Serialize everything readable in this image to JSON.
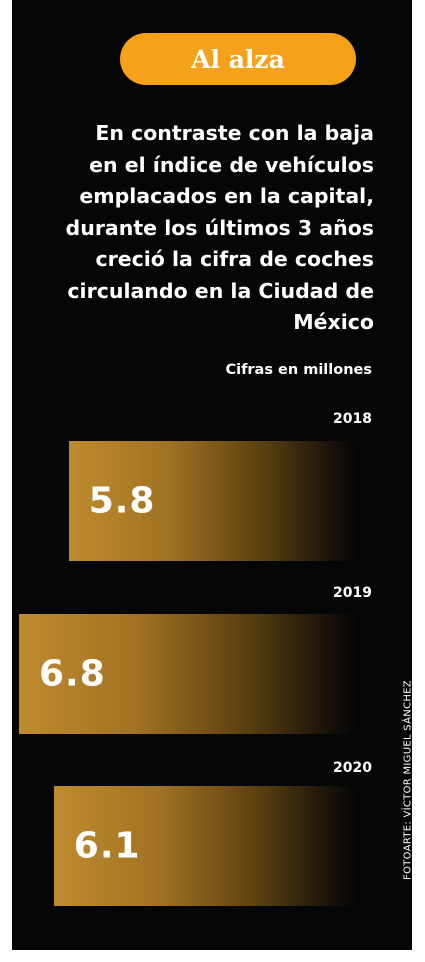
{
  "header": {
    "badge": "Al alza",
    "headline_lines": [
      "En contraste con la baja",
      "en el índice de vehículos",
      "emplacados en la capital,",
      "durante los últimos 3 años",
      "creció la cifra de coches",
      "circulando en la Ciudad de",
      "México"
    ],
    "subtitle": "Cifras en millones"
  },
  "credit": "FOTOARTE: VÍCTOR MIGUEL SÁNCHEZ",
  "colors": {
    "badge": "#f5a21a",
    "bar_start": "#bf8b2e",
    "background": "#050608"
  },
  "chart_data": {
    "type": "bar",
    "orientation": "horizontal",
    "categories": [
      "2018",
      "2019",
      "2020"
    ],
    "values": [
      5.8,
      6.8,
      6.1
    ],
    "value_labels": [
      "5.8",
      "6.8",
      "6.1"
    ]
  }
}
